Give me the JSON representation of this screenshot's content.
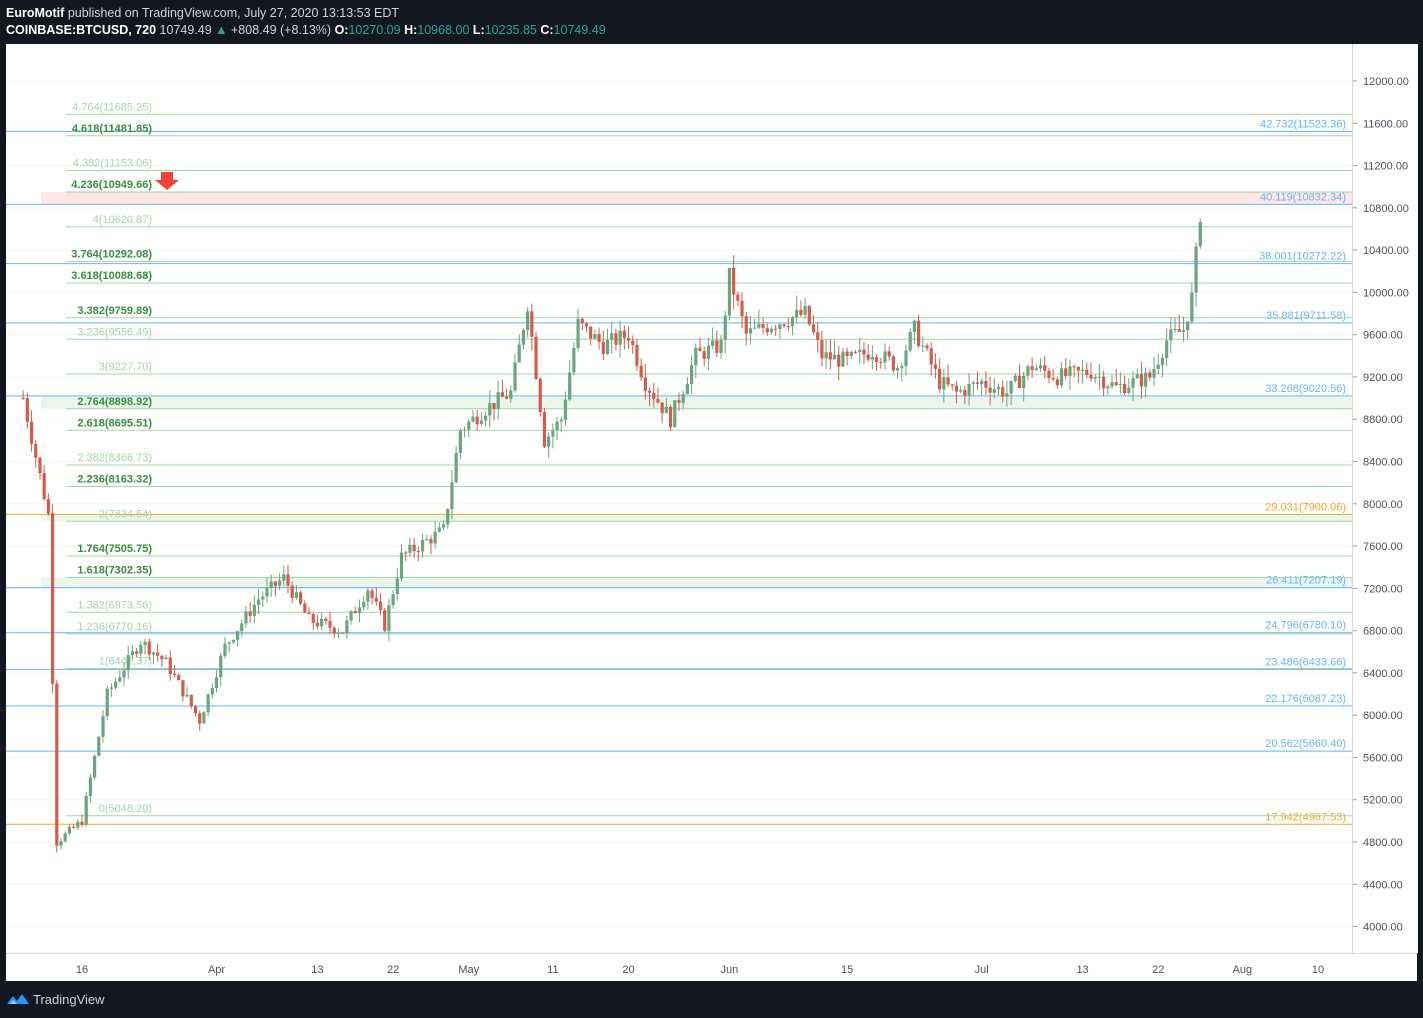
{
  "header": {
    "author": "EuroMotif",
    "published_text": "published on TradingView.com, July 27, 2020 13:13:53 EDT",
    "symbol": "COINBASE:BTCUSD, 720",
    "last_price": "10749.49",
    "change": "+808.49 (+8.13%)",
    "open_label": "O:",
    "open_value": "10270.09",
    "high_label": "H:",
    "high_value": "10968.00",
    "low_label": "L:",
    "low_value": "10235.85",
    "close_label": "C:",
    "close_value": "10749.49"
  },
  "footer": {
    "brand": "TradingView"
  },
  "colors": {
    "up": "#6aa57e",
    "down": "#d25d4a",
    "fib_left": "#a5d6a7",
    "fib_left_strong": "#4caf50",
    "fib_right": "#64b5f6",
    "fib_right_orange": "#f5a623",
    "zone_fill": "#e8f5e9",
    "top_zone": "#fde4e1",
    "arrow": "#f44336"
  },
  "chart_data": {
    "type": "candlestick",
    "y_axis": {
      "range": [
        3750,
        12350
      ],
      "ticks": [
        4000,
        4400,
        4800,
        5200,
        5600,
        6000,
        6400,
        6800,
        7200,
        7600,
        8000,
        8400,
        8800,
        9200,
        9600,
        10000,
        10400,
        10800,
        11200,
        11600,
        12000
      ]
    },
    "x_axis": {
      "labels": [
        {
          "text": "16",
          "date": "2020-03-16"
        },
        {
          "text": "Apr",
          "date": "2020-04-01"
        },
        {
          "text": "13",
          "date": "2020-04-13"
        },
        {
          "text": "22",
          "date": "2020-04-22"
        },
        {
          "text": "May",
          "date": "2020-05-01"
        },
        {
          "text": "11",
          "date": "2020-05-11"
        },
        {
          "text": "20",
          "date": "2020-05-20"
        },
        {
          "text": "Jun",
          "date": "2020-06-01"
        },
        {
          "text": "15",
          "date": "2020-06-15"
        },
        {
          "text": "Jul",
          "date": "2020-07-01"
        },
        {
          "text": "13",
          "date": "2020-07-13"
        },
        {
          "text": "22",
          "date": "2020-07-22"
        },
        {
          "text": "Aug",
          "date": "2020-08-01"
        },
        {
          "text": "10",
          "date": "2020-08-10"
        }
      ]
    },
    "fib_extension_left": [
      {
        "label": "4.764(11685.25)",
        "value": 11685.25,
        "strong": false
      },
      {
        "label": "4.618(11481.85)",
        "value": 11481.85,
        "strong": true
      },
      {
        "label": "4.382(11153.06)",
        "value": 11153.06,
        "strong": false
      },
      {
        "label": "4.236(10949.66)",
        "value": 10949.66,
        "strong": true
      },
      {
        "label": "4(10620.87)",
        "value": 10620.87,
        "strong": false
      },
      {
        "label": "3.764(10292.08)",
        "value": 10292.08,
        "strong": true
      },
      {
        "label": "3.618(10088.68)",
        "value": 10088.68,
        "strong": true
      },
      {
        "label": "3.382(9759.89)",
        "value": 9759.89,
        "strong": true
      },
      {
        "label": "3.236(9556.49)",
        "value": 9556.49,
        "strong": false
      },
      {
        "label": "3(9227.70)",
        "value": 9227.7,
        "strong": false
      },
      {
        "label": "2.764(8898.92)",
        "value": 8898.92,
        "strong": true
      },
      {
        "label": "2.618(8695.51)",
        "value": 8695.51,
        "strong": true
      },
      {
        "label": "2.382(8366.73)",
        "value": 8366.73,
        "strong": false
      },
      {
        "label": "2.236(8163.32)",
        "value": 8163.32,
        "strong": true
      },
      {
        "label": "2(7834.54)",
        "value": 7834.54,
        "strong": false
      },
      {
        "label": "1.764(7505.75)",
        "value": 7505.75,
        "strong": true
      },
      {
        "label": "1.618(7302.35)",
        "value": 7302.35,
        "strong": true
      },
      {
        "label": "1.382(6973.56)",
        "value": 6973.56,
        "strong": false
      },
      {
        "label": "1.236(6770.16)",
        "value": 6770.16,
        "strong": false
      },
      {
        "label": "1(6441.37)",
        "value": 6441.37,
        "strong": false
      },
      {
        "label": "0(5048.20)",
        "value": 5048.2,
        "strong": false
      }
    ],
    "fib_levels_right": [
      {
        "label": "42.732(11523.36)",
        "value": 11523.36,
        "color": "blue"
      },
      {
        "label": "40.119(10832.34)",
        "value": 10832.34,
        "color": "blue"
      },
      {
        "label": "38.001(10272.22)",
        "value": 10272.22,
        "color": "blue"
      },
      {
        "label": "35.881(9711.58)",
        "value": 9711.58,
        "color": "blue"
      },
      {
        "label": "33.268(9020.56)",
        "value": 9020.56,
        "color": "blue"
      },
      {
        "label": "29.031(7900.06)",
        "value": 7900.06,
        "color": "orange"
      },
      {
        "label": "26.411(7207.19)",
        "value": 7207.19,
        "color": "blue"
      },
      {
        "label": "24.796(6780.10)",
        "value": 6780.1,
        "color": "blue"
      },
      {
        "label": "23.486(6433.66)",
        "value": 6433.66,
        "color": "blue"
      },
      {
        "label": "22.176(6087.23)",
        "value": 6087.23,
        "color": "blue"
      },
      {
        "label": "20.562(5660.40)",
        "value": 5660.4,
        "color": "blue"
      },
      {
        "label": "17.942(4967.53)",
        "value": 4967.53,
        "color": "orange"
      }
    ],
    "zones": [
      {
        "from": 10949.66,
        "to": 10832.34,
        "kind": "resistance"
      },
      {
        "from": 9020.56,
        "to": 8898.92,
        "kind": "support"
      },
      {
        "from": 7900.06,
        "to": 7834.54,
        "kind": "support"
      },
      {
        "from": 7302.35,
        "to": 7207.19,
        "kind": "support"
      }
    ],
    "arrow_marker": {
      "price": 10949.66,
      "direction": "down"
    },
    "anchors": [
      {
        "date": "2020-03-09",
        "close": 9000
      },
      {
        "date": "2020-03-12",
        "close": 7900
      },
      {
        "date": "2020-03-13",
        "close": 4800
      },
      {
        "date": "2020-03-16",
        "close": 5000
      },
      {
        "date": "2020-03-19",
        "close": 6200
      },
      {
        "date": "2020-03-23",
        "close": 6700
      },
      {
        "date": "2020-03-26",
        "close": 6500
      },
      {
        "date": "2020-03-30",
        "close": 5950
      },
      {
        "date": "2020-04-02",
        "close": 6650
      },
      {
        "date": "2020-04-06",
        "close": 7100
      },
      {
        "date": "2020-04-09",
        "close": 7300
      },
      {
        "date": "2020-04-12",
        "close": 6900
      },
      {
        "date": "2020-04-16",
        "close": 6800
      },
      {
        "date": "2020-04-19",
        "close": 7200
      },
      {
        "date": "2020-04-21",
        "close": 6850
      },
      {
        "date": "2020-04-23",
        "close": 7500
      },
      {
        "date": "2020-04-28",
        "close": 7750
      },
      {
        "date": "2020-04-30",
        "close": 8700
      },
      {
        "date": "2020-05-03",
        "close": 8900
      },
      {
        "date": "2020-05-06",
        "close": 9050
      },
      {
        "date": "2020-05-08",
        "close": 9900
      },
      {
        "date": "2020-05-10",
        "close": 8600
      },
      {
        "date": "2020-05-12",
        "close": 8800
      },
      {
        "date": "2020-05-14",
        "close": 9700
      },
      {
        "date": "2020-05-17",
        "close": 9500
      },
      {
        "date": "2020-05-20",
        "close": 9600
      },
      {
        "date": "2020-05-22",
        "close": 9150
      },
      {
        "date": "2020-05-25",
        "close": 8800
      },
      {
        "date": "2020-05-28",
        "close": 9400
      },
      {
        "date": "2020-05-31",
        "close": 9500
      },
      {
        "date": "2020-06-01",
        "close": 10150
      },
      {
        "date": "2020-06-03",
        "close": 9600
      },
      {
        "date": "2020-06-06",
        "close": 9700
      },
      {
        "date": "2020-06-10",
        "close": 9800
      },
      {
        "date": "2020-06-12",
        "close": 9400
      },
      {
        "date": "2020-06-15",
        "close": 9350
      },
      {
        "date": "2020-06-18",
        "close": 9450
      },
      {
        "date": "2020-06-21",
        "close": 9300
      },
      {
        "date": "2020-06-23",
        "close": 9650
      },
      {
        "date": "2020-06-26",
        "close": 9150
      },
      {
        "date": "2020-06-28",
        "close": 9050
      },
      {
        "date": "2020-07-01",
        "close": 9150
      },
      {
        "date": "2020-07-04",
        "close": 9050
      },
      {
        "date": "2020-07-07",
        "close": 9300
      },
      {
        "date": "2020-07-10",
        "close": 9200
      },
      {
        "date": "2020-07-14",
        "close": 9250
      },
      {
        "date": "2020-07-17",
        "close": 9100
      },
      {
        "date": "2020-07-21",
        "close": 9200
      },
      {
        "date": "2020-07-23",
        "close": 9550
      },
      {
        "date": "2020-07-25",
        "close": 9650
      },
      {
        "date": "2020-07-26",
        "close": 9950
      },
      {
        "date": "2020-07-27",
        "close": 10749.49
      }
    ]
  }
}
